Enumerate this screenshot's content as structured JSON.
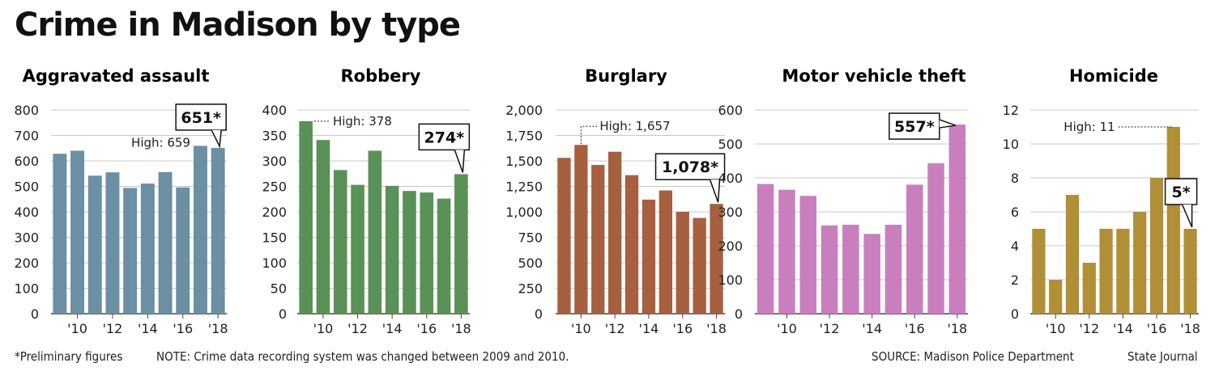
{
  "title": "Crime in Madison by type",
  "footer": {
    "preliminary": "*Preliminary figures",
    "note": "NOTE: Crime data recording system was changed between 2009 and 2010.",
    "source": "SOURCE: Madison Police Department",
    "credit": "State Journal"
  },
  "chart_data": [
    {
      "type": "bar",
      "title": "Aggravated assault",
      "color": "#6b8fa3",
      "categories": [
        "2009",
        "2010",
        "2011",
        "2012",
        "2013",
        "2014",
        "2015",
        "2016",
        "2017",
        "2018"
      ],
      "x_tick_labels": [
        "'10",
        "'12",
        "'14",
        "'16",
        "'18"
      ],
      "values": [
        628,
        640,
        542,
        555,
        494,
        511,
        556,
        496,
        659,
        651
      ],
      "ylim": [
        0,
        800
      ],
      "yticks": [
        "0",
        "100",
        "200",
        "300",
        "400",
        "500",
        "600",
        "700",
        "800"
      ],
      "annotations": [
        {
          "text": "High: 659",
          "index": 8,
          "style": "label"
        },
        {
          "text": "651*",
          "index": 9,
          "style": "callout"
        }
      ]
    },
    {
      "type": "bar",
      "title": "Robbery",
      "color": "#5a9157",
      "categories": [
        "2009",
        "2010",
        "2011",
        "2012",
        "2013",
        "2014",
        "2015",
        "2016",
        "2017",
        "2018"
      ],
      "x_tick_labels": [
        "'10",
        "'12",
        "'14",
        "'16",
        "'18"
      ],
      "values": [
        378,
        341,
        282,
        253,
        320,
        251,
        241,
        238,
        226,
        274
      ],
      "ylim": [
        0,
        400
      ],
      "yticks": [
        "0",
        "50",
        "100",
        "150",
        "200",
        "250",
        "300",
        "350",
        "400"
      ],
      "annotations": [
        {
          "text": "High: 378",
          "index": 0,
          "style": "label"
        },
        {
          "text": "274*",
          "index": 9,
          "style": "callout"
        }
      ]
    },
    {
      "type": "bar",
      "title": "Burglary",
      "color": "#a65f3f",
      "categories": [
        "2009",
        "2010",
        "2011",
        "2012",
        "2013",
        "2014",
        "2015",
        "2016",
        "2017",
        "2018"
      ],
      "x_tick_labels": [
        "'10",
        "'12",
        "'14",
        "'16",
        "'18"
      ],
      "values": [
        1530,
        1657,
        1460,
        1590,
        1360,
        1120,
        1210,
        1000,
        940,
        1078
      ],
      "ylim": [
        0,
        2000
      ],
      "yticks": [
        "0",
        "250",
        "500",
        "750",
        "1,000",
        "1,250",
        "1,500",
        "1,750",
        "2,000"
      ],
      "annotations": [
        {
          "text": "High: 1,657",
          "index": 1,
          "style": "label"
        },
        {
          "text": "1,078*",
          "index": 9,
          "style": "callout"
        }
      ]
    },
    {
      "type": "bar",
      "title": "Motor vehicle theft",
      "color": "#c97fbd",
      "categories": [
        "2009",
        "2010",
        "2011",
        "2012",
        "2013",
        "2014",
        "2015",
        "2016",
        "2017",
        "2018"
      ],
      "x_tick_labels": [
        "'10",
        "'12",
        "'14",
        "'16",
        "'18"
      ],
      "values": [
        382,
        365,
        347,
        260,
        262,
        235,
        262,
        380,
        443,
        557
      ],
      "ylim": [
        0,
        600
      ],
      "yticks": [
        "0",
        "100",
        "200",
        "300",
        "400",
        "500",
        "600"
      ],
      "annotations": [
        {
          "text": "557*",
          "index": 9,
          "style": "callout"
        }
      ]
    },
    {
      "type": "bar",
      "title": "Homicide",
      "color": "#b08f36",
      "categories": [
        "2009",
        "2010",
        "2011",
        "2012",
        "2013",
        "2014",
        "2015",
        "2016",
        "2017",
        "2018"
      ],
      "x_tick_labels": [
        "'10",
        "'12",
        "'14",
        "'16",
        "'18"
      ],
      "values": [
        5,
        2,
        7,
        3,
        5,
        5,
        6,
        8,
        11,
        5
      ],
      "ylim": [
        0,
        12
      ],
      "yticks": [
        "0",
        "2",
        "4",
        "6",
        "8",
        "10",
        "12"
      ],
      "annotations": [
        {
          "text": "High: 11",
          "index": 8,
          "style": "label"
        },
        {
          "text": "5*",
          "index": 9,
          "style": "callout"
        }
      ]
    }
  ]
}
